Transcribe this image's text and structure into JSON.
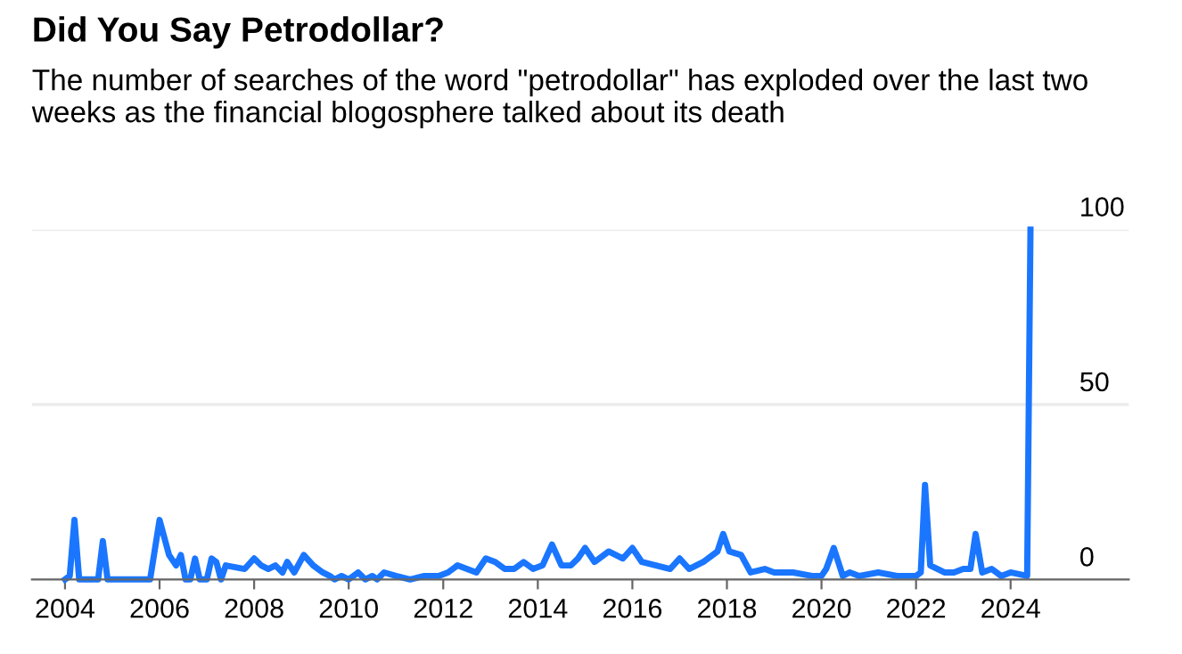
{
  "chart_data": {
    "type": "line",
    "title": "Did You Say Petrodollar?",
    "subtitle": "The number of searches of the word \"petrodollar\" has exploded over the last two weeks as the financial blogosphere talked about its death",
    "x": [
      2004.0,
      2004.1,
      2004.2,
      2004.3,
      2004.7,
      2004.8,
      2004.9,
      2005.8,
      2006.0,
      2006.2,
      2006.35,
      2006.45,
      2006.55,
      2006.65,
      2006.75,
      2006.85,
      2007.0,
      2007.1,
      2007.2,
      2007.3,
      2007.4,
      2007.8,
      2008.0,
      2008.15,
      2008.3,
      2008.45,
      2008.6,
      2008.7,
      2008.85,
      2009.05,
      2009.25,
      2009.45,
      2009.6,
      2009.7,
      2009.85,
      2010.0,
      2010.2,
      2010.35,
      2010.5,
      2010.6,
      2010.75,
      2011.0,
      2011.3,
      2011.6,
      2011.9,
      2012.1,
      2012.3,
      2012.5,
      2012.7,
      2012.9,
      2013.1,
      2013.3,
      2013.5,
      2013.7,
      2013.9,
      2014.1,
      2014.3,
      2014.5,
      2014.7,
      2014.85,
      2015.0,
      2015.2,
      2015.5,
      2015.8,
      2016.0,
      2016.2,
      2016.5,
      2016.8,
      2017.0,
      2017.2,
      2017.5,
      2017.8,
      2017.92,
      2018.05,
      2018.3,
      2018.5,
      2018.8,
      2019.0,
      2019.4,
      2019.8,
      2020.0,
      2020.1,
      2020.26,
      2020.45,
      2020.6,
      2020.8,
      2021.2,
      2021.6,
      2022.0,
      2022.1,
      2022.19,
      2022.3,
      2022.6,
      2022.8,
      2023.0,
      2023.15,
      2023.26,
      2023.4,
      2023.6,
      2023.8,
      2024.0,
      2024.35,
      2024.42
    ],
    "values": [
      0,
      1,
      17,
      0,
      0,
      11,
      0,
      0,
      17,
      7,
      4,
      7,
      0,
      0,
      6,
      0,
      0,
      6,
      5,
      0,
      4,
      3,
      6,
      4,
      3,
      4,
      2,
      5,
      2,
      7,
      4,
      2,
      1,
      0,
      1,
      0,
      2,
      0,
      1,
      0,
      2,
      1,
      0,
      1,
      1,
      2,
      4,
      3,
      2,
      6,
      5,
      3,
      3,
      5,
      3,
      4,
      10,
      4,
      4,
      6,
      9,
      5,
      8,
      6,
      9,
      5,
      4,
      3,
      6,
      3,
      5,
      8,
      13,
      8,
      7,
      2,
      3,
      2,
      2,
      1,
      1,
      3,
      9,
      1,
      2,
      1,
      2,
      1,
      1,
      2,
      27,
      4,
      2,
      2,
      3,
      3,
      13,
      2,
      3,
      1,
      2,
      1,
      100
    ],
    "color": "#1a76ff",
    "xlim": [
      2003.3,
      2026.5
    ],
    "ylim": [
      0,
      100
    ],
    "xticks": [
      2004,
      2006,
      2008,
      2010,
      2012,
      2014,
      2016,
      2018,
      2020,
      2022,
      2024
    ],
    "yticks": [
      0,
      50,
      100
    ],
    "grid": "y",
    "legend": false
  }
}
